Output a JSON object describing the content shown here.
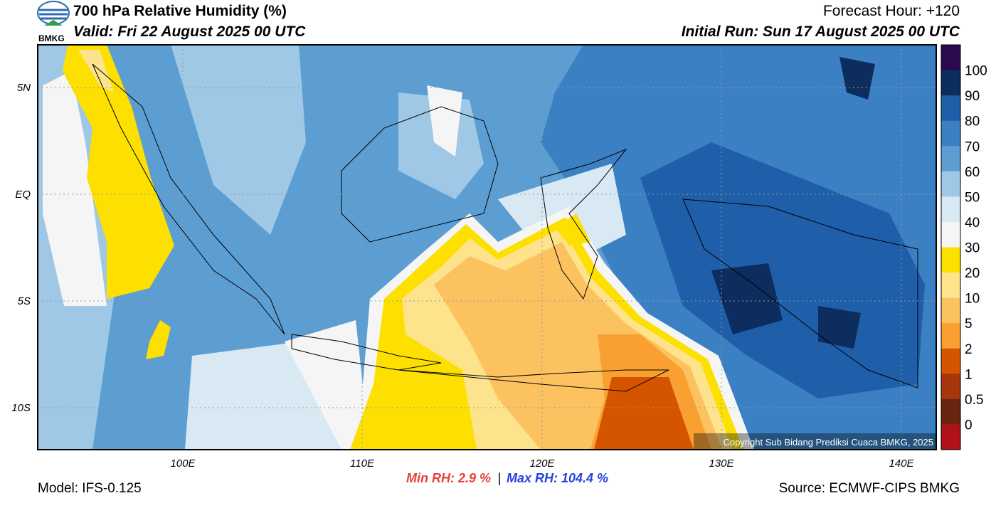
{
  "header": {
    "logo": "BMKG",
    "title": "700 hPa Relative Humidity (%)",
    "valid": "Valid: Fri 22 August 2025 00 UTC",
    "forecast_hour": "Forecast Hour: +120",
    "initial_run": "Initial Run: Sun 17 August 2025 00 UTC"
  },
  "map": {
    "lat_labels": [
      "5N",
      "EQ",
      "5S",
      "10S"
    ],
    "lon_labels": [
      "100E",
      "110E",
      "120E",
      "130E",
      "140E"
    ],
    "copyright": "Copyright Sub Bidang Prediksi Cuaca BMKG, 2025"
  },
  "colorbar": {
    "labels": [
      "100",
      "90",
      "80",
      "70",
      "60",
      "50",
      "40",
      "30",
      "20",
      "10",
      "5",
      "2",
      "1",
      "0.5",
      "0"
    ],
    "colors": [
      "#2b0b4e",
      "#0c2d5e",
      "#1f5ea8",
      "#3a80c2",
      "#5d9ed2",
      "#9ec8e5",
      "#d8e9f4",
      "#f5f5f5",
      "#fde000",
      "#fde48c",
      "#fdc260",
      "#f9a031",
      "#d45400",
      "#a8360d",
      "#6b2410",
      "#b0121a",
      "#e8473b"
    ]
  },
  "stats": {
    "min": "Min RH:   2.9 %",
    "separator": "|",
    "max": "Max RH: 104.4 %"
  },
  "footer": {
    "model": "Model: IFS-0.125",
    "source": "Source: ECMWF-CIPS BMKG"
  }
}
